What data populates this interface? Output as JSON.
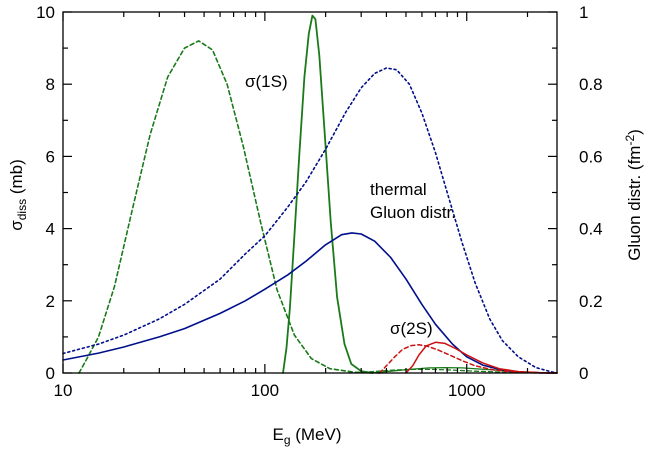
{
  "chart_data": {
    "type": "line",
    "x_scale": "log",
    "xlim": [
      10,
      2800
    ],
    "ylim": [
      0,
      10
    ],
    "y2lim": [
      0,
      1
    ],
    "grid": false,
    "xlabel_main": "E",
    "xlabel_sub": "g",
    "xlabel_rest": " (MeV)",
    "ylabel_main": "σ",
    "ylabel_sub": "diss",
    "ylabel_rest": " (mb)",
    "y2label_main": "Gluon distr. (fm",
    "y2label_sup": "-2",
    "y2label_rest": ")",
    "x_ticks": [
      {
        "value": 10,
        "label": "10"
      },
      {
        "value": 100,
        "label": "100"
      },
      {
        "value": 1000,
        "label": "1000"
      }
    ],
    "y_ticks": [
      {
        "value": 0,
        "label": "0"
      },
      {
        "value": 2,
        "label": "2"
      },
      {
        "value": 4,
        "label": "4"
      },
      {
        "value": 6,
        "label": "6"
      },
      {
        "value": 8,
        "label": "8"
      },
      {
        "value": 10,
        "label": "10"
      }
    ],
    "y2_ticks": [
      {
        "value": 0,
        "label": "0"
      },
      {
        "value": 0.2,
        "label": "0.2"
      },
      {
        "value": 0.4,
        "label": "0.4"
      },
      {
        "value": 0.6,
        "label": "0.6"
      },
      {
        "value": 0.8,
        "label": "0.8"
      },
      {
        "value": 1,
        "label": "1"
      }
    ],
    "annotations": [
      {
        "text": "σ(1S)",
        "x": 165,
        "y": 7.9
      },
      {
        "text": "thermal",
        "x": 310,
        "y": 4.9
      },
      {
        "text": "Gluon distr.",
        "x": 310,
        "y": 4.1
      },
      {
        "text": "σ(2S)",
        "x": 470,
        "y": 1.05
      }
    ],
    "series": [
      {
        "color": "#1a7a1a",
        "dash": "solid",
        "width": 1.8,
        "points": [
          [
            123,
            0
          ],
          [
            128,
            0.7
          ],
          [
            133,
            1.8
          ],
          [
            140,
            3.8
          ],
          [
            148,
            6.0
          ],
          [
            157,
            8.2
          ],
          [
            165,
            9.4
          ],
          [
            172,
            9.9
          ],
          [
            178,
            9.8
          ],
          [
            186,
            8.8
          ],
          [
            198,
            6.6
          ],
          [
            212,
            4.2
          ],
          [
            228,
            2.1
          ],
          [
            248,
            0.8
          ],
          [
            268,
            0.25
          ],
          [
            300,
            0.05
          ],
          [
            340,
            0
          ]
        ]
      },
      {
        "color": "#1a7a1a",
        "dash": "dashed",
        "width": 1.6,
        "points": [
          [
            12,
            0
          ],
          [
            13,
            0.35
          ],
          [
            15,
            1.0
          ],
          [
            18,
            2.4
          ],
          [
            22,
            4.5
          ],
          [
            27,
            6.6
          ],
          [
            33,
            8.2
          ],
          [
            40,
            9.0
          ],
          [
            47,
            9.2
          ],
          [
            55,
            8.95
          ],
          [
            65,
            8.0
          ],
          [
            78,
            6.3
          ],
          [
            95,
            4.2
          ],
          [
            115,
            2.3
          ],
          [
            140,
            1.05
          ],
          [
            170,
            0.4
          ],
          [
            210,
            0.12
          ],
          [
            280,
            0.02
          ],
          [
            380,
            0
          ]
        ]
      },
      {
        "color": "#1a7a1a",
        "dash": "solid",
        "width": 1.3,
        "points": [
          [
            330,
            0
          ],
          [
            420,
            0.05
          ],
          [
            520,
            0.1
          ],
          [
            650,
            0.14
          ],
          [
            780,
            0.15
          ],
          [
            950,
            0.14
          ],
          [
            1150,
            0.11
          ],
          [
            1400,
            0.08
          ],
          [
            1800,
            0.04
          ],
          [
            2300,
            0.01
          ],
          [
            2800,
            0
          ]
        ]
      },
      {
        "color": "#1a7a1a",
        "dash": "dashed",
        "width": 1.3,
        "points": [
          [
            260,
            0
          ],
          [
            340,
            0.04
          ],
          [
            430,
            0.08
          ],
          [
            540,
            0.1
          ],
          [
            680,
            0.1
          ],
          [
            850,
            0.08
          ],
          [
            1100,
            0.05
          ],
          [
            1400,
            0.03
          ],
          [
            1900,
            0.01
          ],
          [
            2800,
            0
          ]
        ]
      },
      {
        "color": "#000f8a",
        "dash": "solid",
        "width": 1.6,
        "axis": "y2",
        "points": [
          [
            10,
            0.036
          ],
          [
            15,
            0.055
          ],
          [
            20,
            0.072
          ],
          [
            30,
            0.1
          ],
          [
            40,
            0.123
          ],
          [
            60,
            0.165
          ],
          [
            80,
            0.2
          ],
          [
            100,
            0.232
          ],
          [
            130,
            0.272
          ],
          [
            160,
            0.31
          ],
          [
            200,
            0.355
          ],
          [
            240,
            0.383
          ],
          [
            270,
            0.388
          ],
          [
            300,
            0.385
          ],
          [
            350,
            0.365
          ],
          [
            420,
            0.32
          ],
          [
            500,
            0.26
          ],
          [
            600,
            0.19
          ],
          [
            700,
            0.135
          ],
          [
            850,
            0.08
          ],
          [
            1000,
            0.045
          ],
          [
            1200,
            0.022
          ],
          [
            1500,
            0.008
          ],
          [
            1900,
            0.002
          ],
          [
            2400,
            0.0004
          ],
          [
            2800,
            0
          ]
        ]
      },
      {
        "color": "#000f8a",
        "dash": "dotted",
        "width": 1.6,
        "axis": "y2",
        "points": [
          [
            10,
            0.054
          ],
          [
            15,
            0.08
          ],
          [
            20,
            0.105
          ],
          [
            30,
            0.15
          ],
          [
            40,
            0.19
          ],
          [
            60,
            0.26
          ],
          [
            80,
            0.33
          ],
          [
            100,
            0.38
          ],
          [
            130,
            0.46
          ],
          [
            160,
            0.53
          ],
          [
            200,
            0.62
          ],
          [
            250,
            0.72
          ],
          [
            300,
            0.79
          ],
          [
            350,
            0.83
          ],
          [
            400,
            0.845
          ],
          [
            450,
            0.84
          ],
          [
            520,
            0.8
          ],
          [
            600,
            0.72
          ],
          [
            700,
            0.61
          ],
          [
            800,
            0.5
          ],
          [
            950,
            0.36
          ],
          [
            1100,
            0.25
          ],
          [
            1300,
            0.15
          ],
          [
            1500,
            0.09
          ],
          [
            1800,
            0.045
          ],
          [
            2200,
            0.015
          ],
          [
            2600,
            0.004
          ],
          [
            2800,
            0
          ]
        ]
      },
      {
        "color": "#cc1111",
        "dash": "solid",
        "width": 1.5,
        "points": [
          [
            500,
            0
          ],
          [
            540,
            0.2
          ],
          [
            580,
            0.5
          ],
          [
            630,
            0.75
          ],
          [
            700,
            0.85
          ],
          [
            780,
            0.82
          ],
          [
            880,
            0.68
          ],
          [
            1000,
            0.5
          ],
          [
            1200,
            0.28
          ],
          [
            1450,
            0.12
          ],
          [
            1800,
            0.04
          ],
          [
            2300,
            0.01
          ],
          [
            2800,
            0
          ]
        ]
      },
      {
        "color": "#cc1111",
        "dash": "dashed",
        "width": 1.5,
        "points": [
          [
            370,
            0
          ],
          [
            400,
            0.2
          ],
          [
            440,
            0.45
          ],
          [
            480,
            0.65
          ],
          [
            530,
            0.76
          ],
          [
            580,
            0.78
          ],
          [
            640,
            0.74
          ],
          [
            720,
            0.64
          ],
          [
            820,
            0.5
          ],
          [
            950,
            0.34
          ],
          [
            1100,
            0.2
          ],
          [
            1350,
            0.09
          ],
          [
            1700,
            0.025
          ],
          [
            2200,
            0.004
          ],
          [
            2800,
            0
          ]
        ]
      }
    ]
  }
}
